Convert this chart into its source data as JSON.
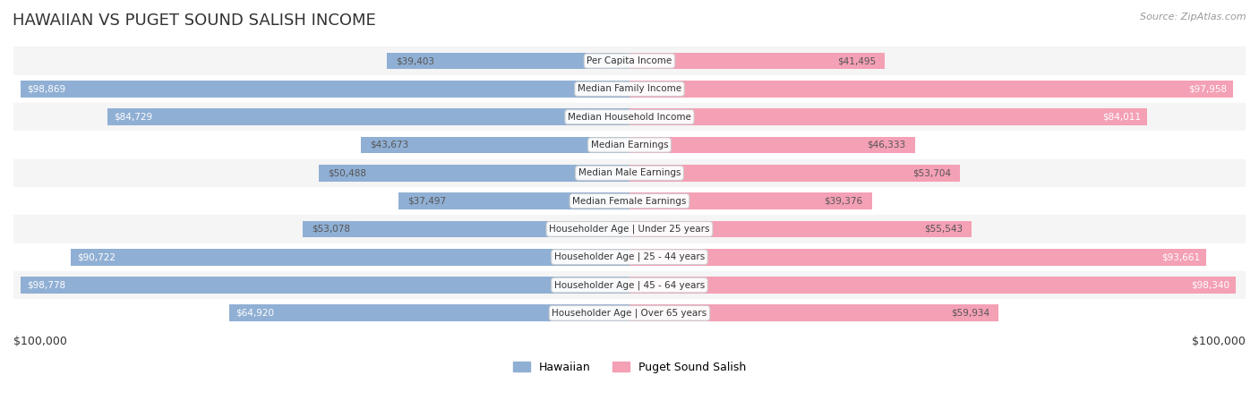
{
  "title": "HAWAIIAN VS PUGET SOUND SALISH INCOME",
  "source": "Source: ZipAtlas.com",
  "categories": [
    "Per Capita Income",
    "Median Family Income",
    "Median Household Income",
    "Median Earnings",
    "Median Male Earnings",
    "Median Female Earnings",
    "Householder Age | Under 25 years",
    "Householder Age | 25 - 44 years",
    "Householder Age | 45 - 64 years",
    "Householder Age | Over 65 years"
  ],
  "hawaiian_values": [
    39403,
    98869,
    84729,
    43673,
    50488,
    37497,
    53078,
    90722,
    98778,
    64920
  ],
  "salish_values": [
    41495,
    97958,
    84011,
    46333,
    53704,
    39376,
    55543,
    93661,
    98340,
    59934
  ],
  "hawaiian_labels": [
    "$39,403",
    "$98,869",
    "$84,729",
    "$43,673",
    "$50,488",
    "$37,497",
    "$53,078",
    "$90,722",
    "$98,778",
    "$64,920"
  ],
  "salish_labels": [
    "$41,495",
    "$97,958",
    "$84,011",
    "$46,333",
    "$53,704",
    "$39,376",
    "$55,543",
    "$93,661",
    "$98,340",
    "$59,934"
  ],
  "max_value": 100000,
  "hawaiian_color": "#90afd4",
  "salish_color": "#f4a0b5",
  "hawaiian_color_dark": "#5b8fc7",
  "salish_color_dark": "#e8607a",
  "row_bg_light": "#f5f5f5",
  "row_bg_white": "#ffffff",
  "label_bg": "#ffffff",
  "bar_height": 0.6,
  "legend_hawaiian": "Hawaiian",
  "legend_salish": "Puget Sound Salish",
  "x_label_left": "$100,000",
  "x_label_right": "$100,000"
}
